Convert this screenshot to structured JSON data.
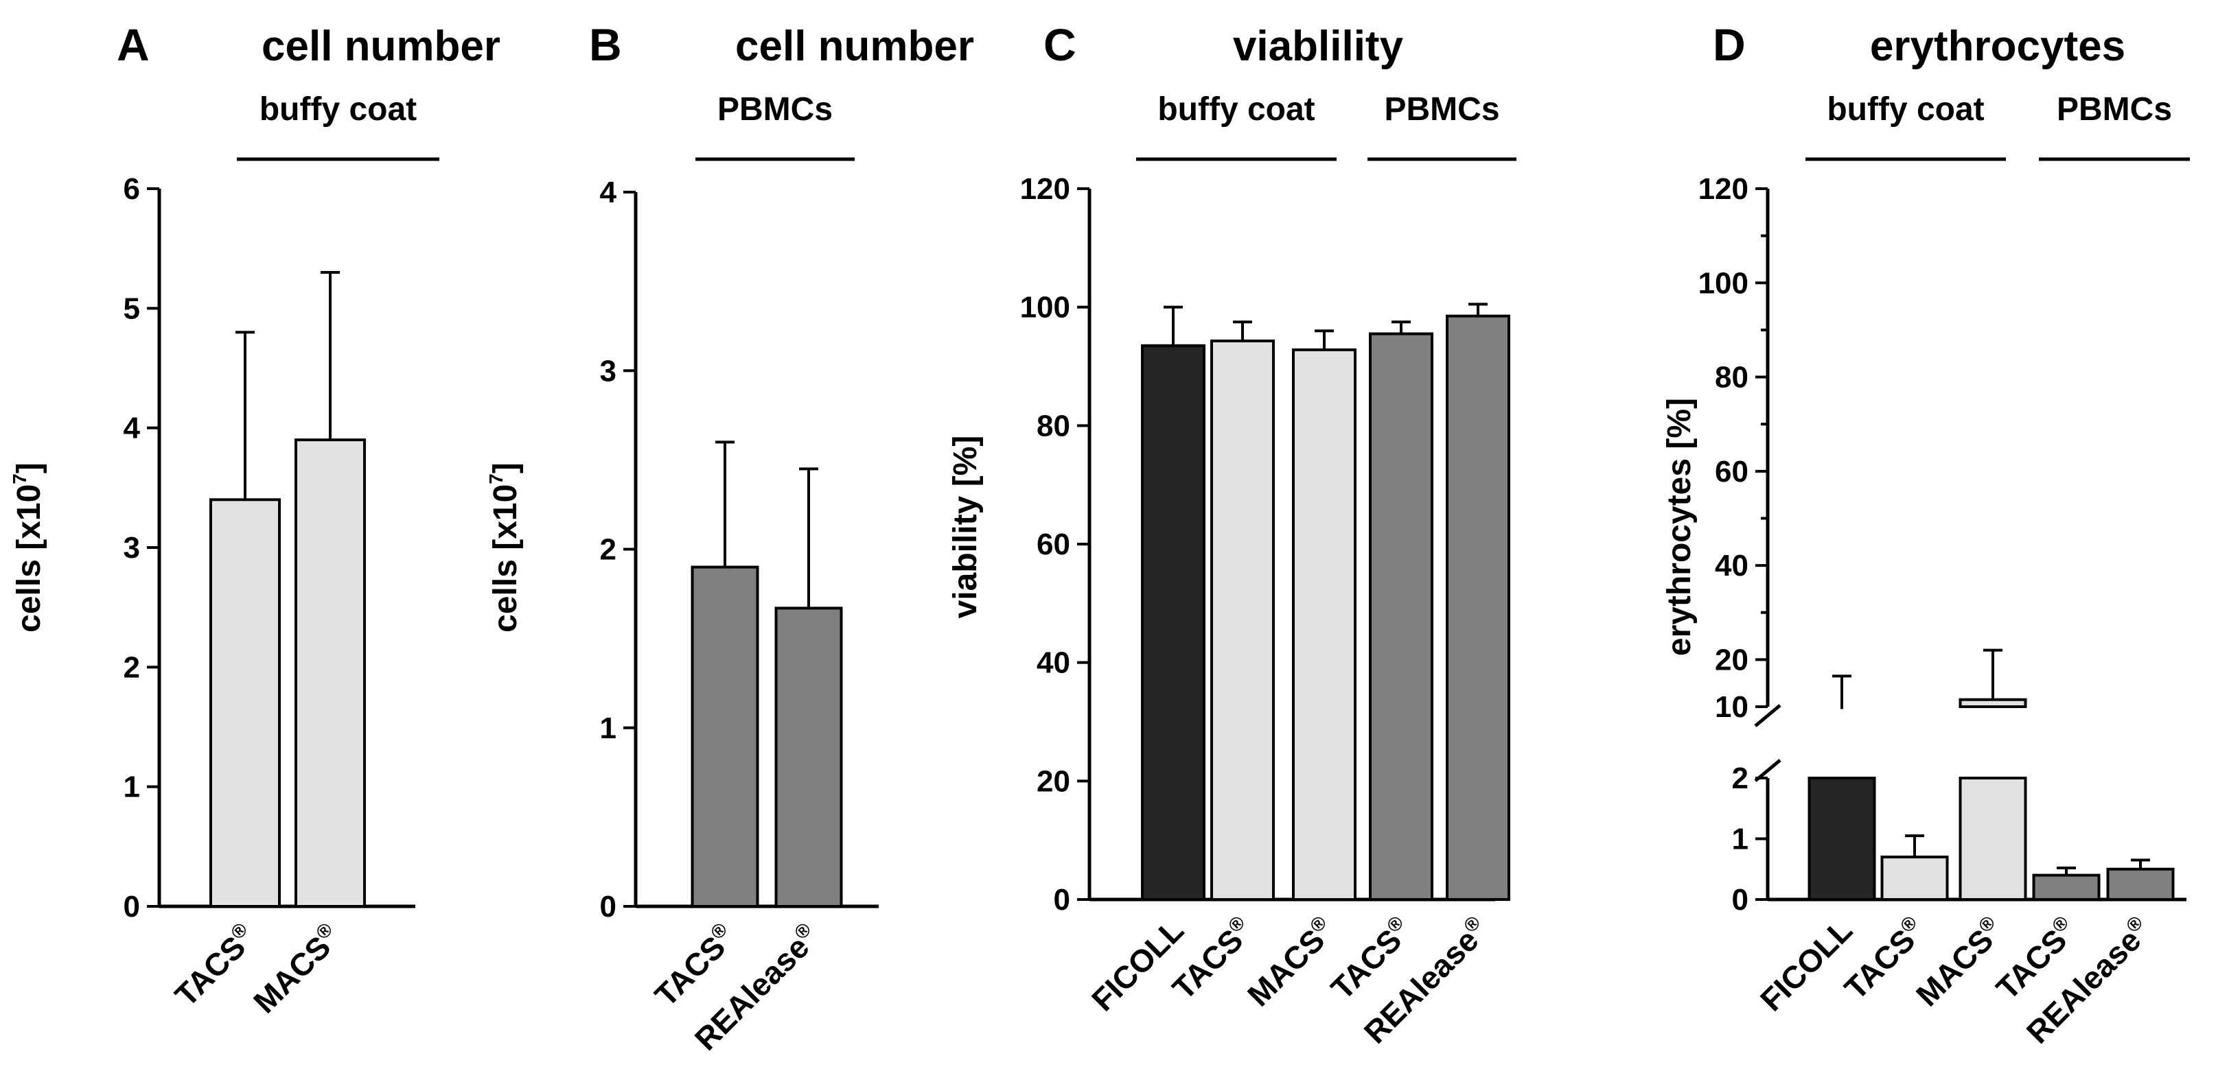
{
  "chart_data": [
    {
      "type": "bar",
      "panel_label": "A",
      "title": "cell number",
      "groups": [
        {
          "label": "buffy coat",
          "from": 0,
          "to": 1
        }
      ],
      "categories": [
        "TACS",
        "MACS"
      ],
      "category_marks": [
        "®",
        "®"
      ],
      "values": [
        3.4,
        3.9
      ],
      "errors": [
        1.4,
        1.4
      ],
      "colors": [
        "#e2e2e2",
        "#e2e2e2"
      ],
      "ylabel": "cells [x10",
      "ylabel_exponent": "7",
      "ylabel_close": "]",
      "ylim": [
        0,
        6
      ],
      "yticks": [
        0,
        1,
        2,
        3,
        4,
        5,
        6
      ],
      "ytick_labels": [
        "0",
        "1",
        "2",
        "3",
        "4",
        "5",
        "6"
      ]
    },
    {
      "type": "bar",
      "panel_label": "B",
      "title": "cell number",
      "groups": [
        {
          "label": "PBMCs",
          "from": 0,
          "to": 1
        }
      ],
      "categories": [
        "TACS",
        "REAlease"
      ],
      "category_marks": [
        "®",
        "®"
      ],
      "values": [
        1.9,
        1.67
      ],
      "errors": [
        0.7,
        0.78
      ],
      "colors": [
        "#808080",
        "#808080"
      ],
      "ylabel": "cells [x10",
      "ylabel_exponent": "7",
      "ylabel_close": "]",
      "ylim": [
        0,
        4
      ],
      "yticks": [
        0,
        1,
        2,
        3,
        4
      ],
      "ytick_labels": [
        "0",
        "1",
        "2",
        "3",
        "4"
      ]
    },
    {
      "type": "bar",
      "panel_label": "C",
      "title": "viablility",
      "groups": [
        {
          "label": "buffy coat",
          "from": 0,
          "to": 2
        },
        {
          "label": "PBMCs",
          "from": 3,
          "to": 4
        }
      ],
      "categories": [
        "FICOLL",
        "TACS",
        "MACS",
        "TACS",
        "REAlease"
      ],
      "category_marks": [
        "",
        "®",
        "®",
        "®",
        "®"
      ],
      "values": [
        93.5,
        94.3,
        92.8,
        95.5,
        98.5
      ],
      "errors": [
        6.5,
        3.2,
        3.2,
        2.0,
        2.0
      ],
      "colors": [
        "#252525",
        "#e2e2e2",
        "#e2e2e2",
        "#808080",
        "#808080"
      ],
      "ylabel": "viability [%]",
      "ylim": [
        0,
        120
      ],
      "yticks": [
        0,
        20,
        40,
        60,
        80,
        100,
        120
      ],
      "ytick_labels": [
        "0",
        "20",
        "40",
        "60",
        "80",
        "100",
        "120"
      ]
    },
    {
      "type": "bar",
      "panel_label": "D",
      "title": "erythrocytes",
      "groups": [
        {
          "label": "buffy coat",
          "from": 0,
          "to": 2
        },
        {
          "label": "PBMCs",
          "from": 3,
          "to": 4
        }
      ],
      "categories": [
        "FICOLL",
        "TACS",
        "MACS",
        "TACS",
        "REAlease"
      ],
      "category_marks": [
        "",
        "®",
        "®",
        "®",
        "®"
      ],
      "values": [
        9.5,
        0.7,
        11.5,
        0.4,
        0.5
      ],
      "errors": [
        7.0,
        0.35,
        10.5,
        0.12,
        0.15
      ],
      "colors": [
        "#252525",
        "#e2e2e2",
        "#e2e2e2",
        "#808080",
        "#808080"
      ],
      "ylabel": "erythrocytes [%]",
      "broken_axis": {
        "lower_range": [
          0,
          2
        ],
        "upper_range": [
          10,
          120
        ]
      },
      "yticks": [
        0,
        1,
        2,
        10,
        20,
        40,
        60,
        80,
        100,
        120
      ],
      "ytick_labels": [
        "0",
        "1",
        "2",
        "10",
        "20",
        "40",
        "60",
        "80",
        "100",
        "120"
      ]
    }
  ]
}
